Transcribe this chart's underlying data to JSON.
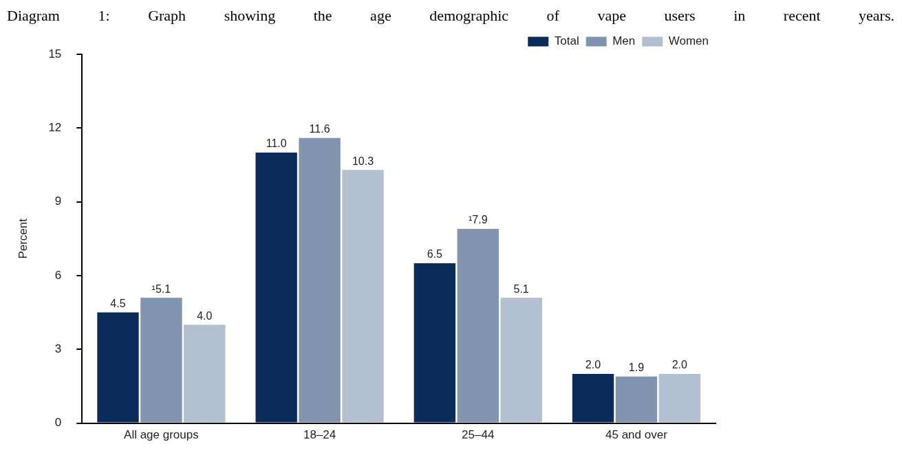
{
  "chart_data": {
    "type": "bar",
    "title": "Diagram 1: Graph showing the age demographic of vape users in recent years.",
    "ylabel": "Percent",
    "categories": [
      "All age groups",
      "18–24",
      "25–44",
      "45 and over"
    ],
    "series": [
      {
        "name": "Total",
        "color": "#0b2c5a",
        "values": [
          4.5,
          11.0,
          6.5,
          2.0
        ],
        "value_labels": [
          "4.5",
          "11.0",
          "6.5",
          "2.0"
        ]
      },
      {
        "name": "Men",
        "color": "#8194b0",
        "values": [
          5.1,
          11.6,
          7.9,
          1.9
        ],
        "value_labels": [
          "¹5.1",
          "11.6",
          "¹7.9",
          "1.9"
        ]
      },
      {
        "name": "Women",
        "color": "#b1bfd1",
        "values": [
          4.0,
          10.3,
          5.1,
          2.0
        ],
        "value_labels": [
          "4.0",
          "10.3",
          "5.1",
          "2.0"
        ]
      }
    ],
    "ylim": [
      0,
      15
    ],
    "yticks": [
      0,
      3,
      6,
      9,
      12,
      15
    ],
    "grid": false,
    "legend": "top right"
  }
}
